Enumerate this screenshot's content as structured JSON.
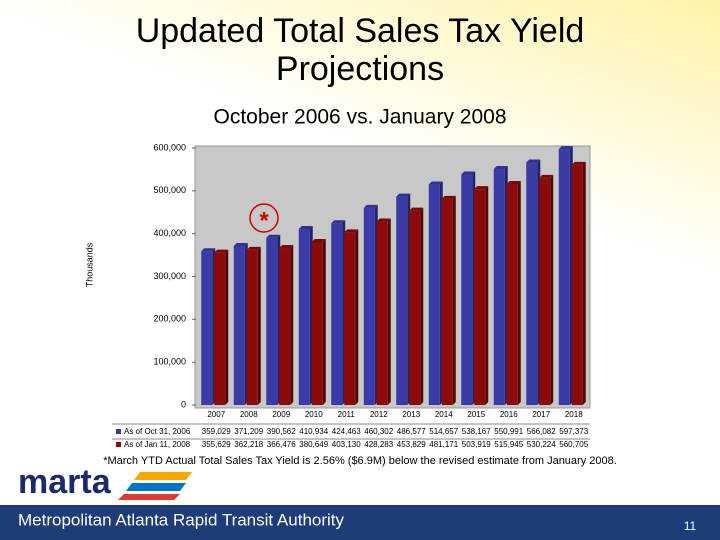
{
  "title": "Updated Total Sales Tax Yield Projections",
  "subtitle": "October 2006 vs. January 2008",
  "chart_data": {
    "type": "bar",
    "ylabel": "Thousands",
    "categories": [
      "2007",
      "2008",
      "2009",
      "2010",
      "2011",
      "2012",
      "2013",
      "2014",
      "2015",
      "2016",
      "2017",
      "2018"
    ],
    "series": [
      {
        "name": "As of Oct 31, 2006",
        "color": "#3b3ba8",
        "values": [
          359029,
          371209,
          390562,
          410934,
          424463,
          460302,
          486577,
          514657,
          538167,
          550991,
          566082,
          597373
        ],
        "value_labels": [
          "359,029",
          "371,209",
          "390,562",
          "410,934",
          "424,463",
          "460,302",
          "486,577",
          "514,657",
          "538,167",
          "550,991",
          "566,082",
          "597,373"
        ]
      },
      {
        "name": "As of Jan 11, 2008",
        "color": "#8b0a0a",
        "values": [
          355629,
          362218,
          366476,
          380649,
          403130,
          428283,
          453829,
          481171,
          503919,
          515945,
          530224,
          560705
        ],
        "value_labels": [
          "355,629",
          "362,218",
          "366,476",
          "380,649",
          "403,130",
          "428,283",
          "453,829",
          "481,171",
          "503,919",
          "515,945",
          "530,224",
          "560,705"
        ]
      }
    ],
    "ylim": [
      0,
      600000
    ],
    "yticks": [
      0,
      {
        "value": 100000,
        "label": "100,000"
      },
      {
        "value": 200000,
        "label": "200,000"
      },
      {
        "value": 300000,
        "label": "300,000"
      },
      {
        "value": 400000,
        "label": "400,000"
      },
      {
        "value": 500000,
        "label": "500,000"
      },
      {
        "value": 600000,
        "label": "600,000"
      }
    ],
    "grid": false,
    "annotation": "*"
  },
  "footnote": "*March YTD Actual Total Sales Tax Yield is 2.56% ($6.9M) below the revised estimate from  January 2008.",
  "logo": "marta",
  "footer": "Metropolitan Atlanta Rapid Transit Authority",
  "page_number": "11"
}
